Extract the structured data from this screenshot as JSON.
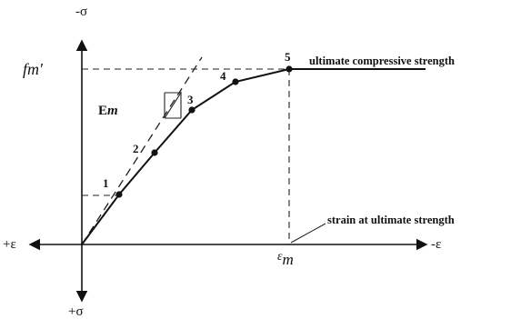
{
  "labels": {
    "neg_sigma": "-σ",
    "pos_sigma": "+σ",
    "pos_eps": "+ε",
    "neg_eps": "-ε",
    "fm_prime": "fm′",
    "em_prefix": "E",
    "em_suffix": "m",
    "eps_m_symbol": "ε",
    "eps_m_sub": "m",
    "ultimate_compressive_strength": "ultimate compressive strength",
    "strain_at_ultimate_strength": "strain at ultimate strength"
  },
  "points": [
    {
      "id": "1",
      "label": "1"
    },
    {
      "id": "2",
      "label": "2"
    },
    {
      "id": "3",
      "label": "3"
    },
    {
      "id": "4",
      "label": "4"
    },
    {
      "id": "5",
      "label": "5"
    }
  ],
  "colors": {
    "ink": "#111111"
  }
}
